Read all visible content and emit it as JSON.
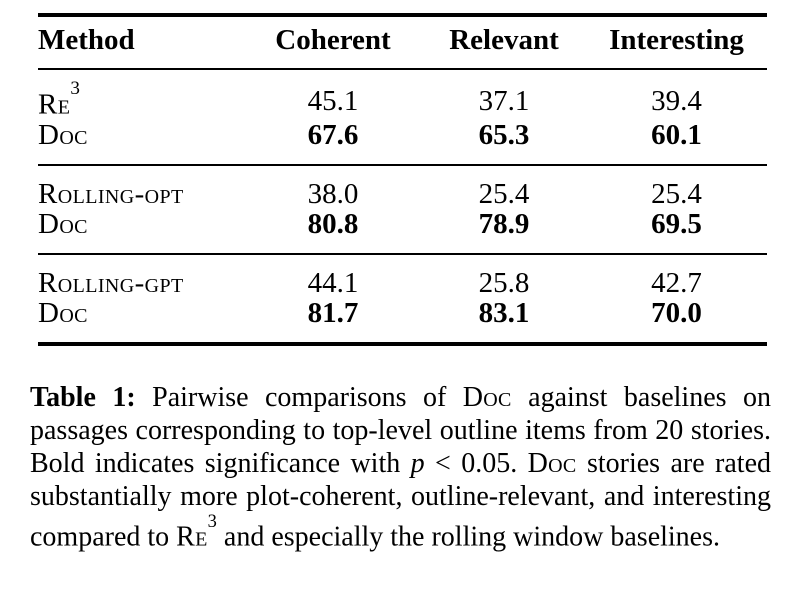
{
  "table": {
    "columns": [
      "Method",
      "Coherent",
      "Relevant",
      "Interesting"
    ],
    "groups": [
      {
        "rows": [
          {
            "method": "Re",
            "method_sup": "3",
            "values": [
              "45.1",
              "37.1",
              "39.4"
            ],
            "bold": false
          },
          {
            "method": "Doc",
            "method_sup": "",
            "values": [
              "67.6",
              "65.3",
              "60.1"
            ],
            "bold": true
          }
        ]
      },
      {
        "rows": [
          {
            "method": "Rolling-opt",
            "method_sup": "",
            "values": [
              "38.0",
              "25.4",
              "25.4"
            ],
            "bold": false
          },
          {
            "method": "Doc",
            "method_sup": "",
            "values": [
              "80.8",
              "78.9",
              "69.5"
            ],
            "bold": true
          }
        ]
      },
      {
        "rows": [
          {
            "method": "Rolling-gpt",
            "method_sup": "",
            "values": [
              "44.1",
              "25.8",
              "42.7"
            ],
            "bold": false
          },
          {
            "method": "Doc",
            "method_sup": "",
            "values": [
              "81.7",
              "83.1",
              "70.0"
            ],
            "bold": true
          }
        ]
      }
    ]
  },
  "caption": {
    "label": "Table 1:",
    "seg_intro": " Pairwise comparisons of ",
    "doc1": "Doc",
    "seg_mid1": " against baselines on passages corresponding to top-level outline items from 20 stories. Bold indicates significance with ",
    "p_var": "p",
    "seg_mid2": " < 0.05. ",
    "doc2": "Doc",
    "seg_mid3": " stories are rated substantially more plot-coherent, outline-relevant, and interesting compared to ",
    "re": "Re",
    "re_sup": "3",
    "seg_end": " and especially the rolling window baselines."
  }
}
